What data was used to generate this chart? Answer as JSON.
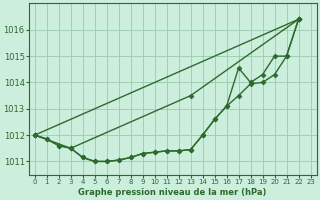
{
  "line_color": "#2d6a2d",
  "marker": "D",
  "markersize": 2.5,
  "linewidth": 1.0,
  "bg_color": "#cceedd",
  "grid_color": "#99ccaa",
  "xlabel": "Graphe pression niveau de la mer (hPa)",
  "ylim": [
    1010.5,
    1017.0
  ],
  "yticks": [
    1011,
    1012,
    1013,
    1014,
    1015,
    1016
  ],
  "xticks": [
    0,
    1,
    2,
    3,
    4,
    5,
    6,
    7,
    8,
    9,
    10,
    11,
    12,
    13,
    14,
    15,
    16,
    17,
    18,
    19,
    20,
    21,
    22,
    23
  ],
  "xlim": [
    -0.5,
    23.5
  ],
  "line1_x": [
    0,
    1,
    2,
    3,
    4,
    5,
    6,
    7,
    8,
    9,
    10,
    11,
    12,
    13,
    14,
    15,
    16,
    17,
    18,
    19,
    20,
    21,
    22
  ],
  "line1_y": [
    1012.0,
    1011.85,
    1011.6,
    1011.5,
    1011.15,
    1011.0,
    1011.0,
    1011.05,
    1011.15,
    1011.3,
    1011.35,
    1011.4,
    1011.4,
    1011.45,
    1012.0,
    1012.6,
    1013.1,
    1013.5,
    1013.95,
    1014.0,
    1014.3,
    1015.0,
    1016.4
  ],
  "line2_x": [
    0,
    1,
    2,
    3,
    4,
    5,
    6,
    7,
    8,
    9,
    10,
    11,
    12,
    13,
    14,
    15,
    16,
    17,
    18,
    19,
    20,
    21,
    22
  ],
  "line2_y": [
    1012.0,
    1011.85,
    1011.6,
    1011.5,
    1011.15,
    1011.0,
    1011.0,
    1011.05,
    1011.15,
    1011.3,
    1011.35,
    1011.4,
    1011.4,
    1011.45,
    1012.0,
    1012.6,
    1013.1,
    1014.55,
    1014.0,
    1014.3,
    1015.0,
    1015.0,
    1016.4
  ],
  "line3_x": [
    0,
    22
  ],
  "line3_y": [
    1012.0,
    1016.4
  ],
  "line4_x": [
    0,
    3,
    13,
    22
  ],
  "line4_y": [
    1012.0,
    1011.5,
    1013.5,
    1016.4
  ],
  "tick_fontsize": 5,
  "xlabel_fontsize": 6.0
}
